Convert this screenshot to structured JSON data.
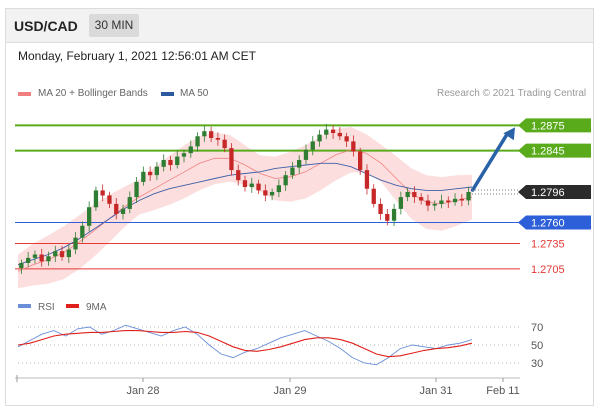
{
  "header": {
    "pair": "USD/CAD",
    "timeframe": "30 MIN"
  },
  "datetime": "Monday, February 1, 2021 12:56:01 AM CET",
  "legend": {
    "ma20": {
      "label": "MA 20 + Bollinger Bands",
      "color": "#f08080"
    },
    "ma50": {
      "label": "MA 50",
      "color": "#2c5aa0"
    }
  },
  "credit": "Research © 2021 Trading Central",
  "rsi_legend": {
    "rsi": {
      "label": "RSI",
      "color": "#6a8fd8"
    },
    "ma9": {
      "label": "9MA",
      "color": "#e0201a"
    }
  },
  "chart_data": [
    {
      "type": "candlestick",
      "ylim": [
        1.268,
        1.2905
      ],
      "x_ticks": [
        "Jan 28",
        "Jan 29",
        "Jan 31",
        "Feb 11"
      ],
      "current_price": "1.2796",
      "levels": [
        {
          "label": "1.2875",
          "value": 1.2875,
          "kind": "resistance",
          "color": "#5aab1c"
        },
        {
          "label": "1.2845",
          "value": 1.2845,
          "kind": "resistance",
          "color": "#5aab1c"
        },
        {
          "label": "1.2760",
          "value": 1.276,
          "kind": "pivot",
          "color": "#2d5fd8"
        },
        {
          "label": "1.2735",
          "value": 1.2735,
          "kind": "support",
          "color": "#e53935"
        },
        {
          "label": "1.2705",
          "value": 1.2705,
          "kind": "support",
          "color": "#e53935"
        }
      ],
      "closes": [
        1.2712,
        1.2718,
        1.2722,
        1.2714,
        1.272,
        1.2726,
        1.2719,
        1.2728,
        1.2742,
        1.2756,
        1.2778,
        1.2798,
        1.2792,
        1.2782,
        1.277,
        1.2776,
        1.279,
        1.2808,
        1.282,
        1.2816,
        1.2826,
        1.2834,
        1.2828,
        1.2838,
        1.2842,
        1.285,
        1.2862,
        1.2868,
        1.286,
        1.2858,
        1.2848,
        1.2822,
        1.281,
        1.2802,
        1.2806,
        1.2798,
        1.2792,
        1.2796,
        1.2804,
        1.2816,
        1.2825,
        1.2834,
        1.2846,
        1.2856,
        1.2864,
        1.287,
        1.2866,
        1.2862,
        1.2856,
        1.2844,
        1.2822,
        1.28,
        1.2782,
        1.277,
        1.2762,
        1.2776,
        1.279,
        1.2796,
        1.279,
        1.2786,
        1.278,
        1.2782,
        1.2786,
        1.2784,
        1.2788,
        1.2786,
        1.2796
      ],
      "ma20": [
        1.2702,
        1.271,
        1.2716,
        1.2724,
        1.2736,
        1.275,
        1.2764,
        1.2778,
        1.279,
        1.28,
        1.281,
        1.282,
        1.283,
        1.2836,
        1.2836,
        1.2828,
        1.2818,
        1.2812,
        1.2814,
        1.282,
        1.283,
        1.284,
        1.2846,
        1.2842,
        1.283,
        1.2812,
        1.2794,
        1.2784,
        1.2782,
        1.2786,
        1.279
      ],
      "ma50": [
        1.271,
        1.2716,
        1.2722,
        1.273,
        1.274,
        1.2752,
        1.2764,
        1.2776,
        1.2786,
        1.2794,
        1.28,
        1.2804,
        1.2808,
        1.2812,
        1.2816,
        1.2818,
        1.282,
        1.2824,
        1.2826,
        1.2828,
        1.283,
        1.283,
        1.2826,
        1.2818,
        1.281,
        1.2804,
        1.28,
        1.2798,
        1.2798,
        1.28,
        1.2802
      ]
    },
    {
      "type": "line",
      "title": "RSI",
      "ylim": [
        20,
        80
      ],
      "y_ticks": [
        "70",
        "50",
        "30"
      ],
      "series": [
        {
          "name": "RSI",
          "values": [
            48,
            55,
            62,
            66,
            60,
            68,
            70,
            62,
            66,
            72,
            68,
            64,
            60,
            66,
            70,
            62,
            50,
            40,
            36,
            42,
            46,
            52,
            58,
            62,
            66,
            60,
            54,
            46,
            36,
            30,
            28,
            36,
            46,
            50,
            48,
            46,
            50,
            52,
            56
          ]
        },
        {
          "name": "9MA",
          "values": [
            50,
            52,
            56,
            60,
            62,
            63,
            64,
            64,
            65,
            66,
            66,
            65,
            64,
            64,
            65,
            64,
            60,
            54,
            48,
            44,
            43,
            45,
            48,
            52,
            56,
            58,
            58,
            56,
            52,
            46,
            40,
            37,
            38,
            41,
            44,
            46,
            47,
            49,
            52
          ]
        }
      ]
    }
  ]
}
